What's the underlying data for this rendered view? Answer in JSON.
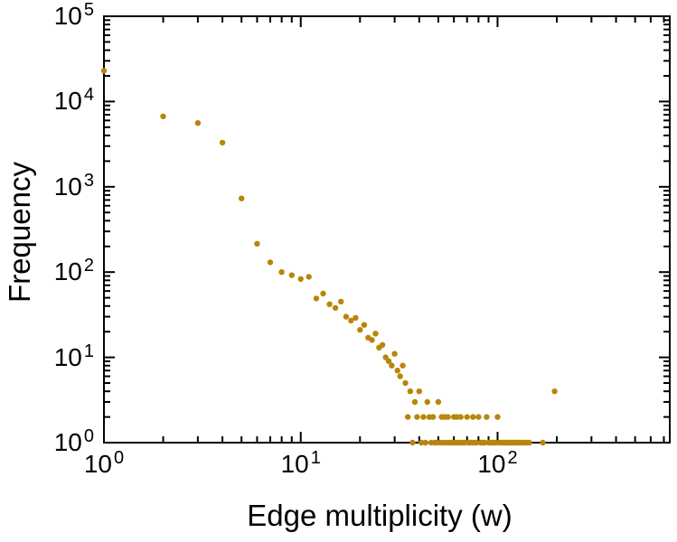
{
  "figure": {
    "background": "#ffffff",
    "frame_color": "#000000",
    "text_color": "#000000"
  },
  "chart_data": {
    "type": "scatter",
    "title": "",
    "xlabel": "Edge multiplicity (w)",
    "ylabel": "Frequency",
    "x_scale": "log",
    "y_scale": "log",
    "x_range": [
      1,
      750
    ],
    "y_range": [
      1,
      100000
    ],
    "x_tick_exponents": [
      0,
      1,
      2
    ],
    "y_tick_exponents": [
      0,
      1,
      2,
      3,
      4,
      5
    ],
    "tick_label_base": "10",
    "minor_ticks": true,
    "legend": "none",
    "grid": false,
    "point_color": "#b8860b",
    "point_radius": 3.2,
    "points": [
      [
        1,
        23000
      ],
      [
        2,
        6700
      ],
      [
        3,
        5600
      ],
      [
        4,
        3300
      ],
      [
        5,
        730
      ],
      [
        6,
        215
      ],
      [
        7,
        130
      ],
      [
        8,
        100
      ],
      [
        9,
        92
      ],
      [
        10,
        83
      ],
      [
        11,
        88
      ],
      [
        12,
        49
      ],
      [
        13,
        56
      ],
      [
        14,
        42
      ],
      [
        15,
        38
      ],
      [
        16,
        45
      ],
      [
        17,
        30
      ],
      [
        18,
        27
      ],
      [
        19,
        29
      ],
      [
        20,
        21
      ],
      [
        21,
        24
      ],
      [
        22,
        17
      ],
      [
        23,
        16
      ],
      [
        24,
        19
      ],
      [
        25,
        13
      ],
      [
        26,
        14
      ],
      [
        27,
        10
      ],
      [
        28,
        9
      ],
      [
        29,
        8
      ],
      [
        30,
        11
      ],
      [
        31,
        7
      ],
      [
        32,
        6
      ],
      [
        33,
        8
      ],
      [
        34,
        5
      ],
      [
        35,
        2
      ],
      [
        36,
        4
      ],
      [
        37,
        1
      ],
      [
        38,
        3
      ],
      [
        39,
        2
      ],
      [
        40,
        4
      ],
      [
        41,
        1
      ],
      [
        42,
        2
      ],
      [
        43,
        1
      ],
      [
        44,
        3
      ],
      [
        45,
        2
      ],
      [
        46,
        1
      ],
      [
        47,
        2
      ],
      [
        48,
        1
      ],
      [
        49,
        1
      ],
      [
        50,
        3
      ],
      [
        51,
        1
      ],
      [
        52,
        2
      ],
      [
        53,
        1
      ],
      [
        54,
        2
      ],
      [
        55,
        1
      ],
      [
        56,
        2
      ],
      [
        57,
        1
      ],
      [
        58,
        1
      ],
      [
        59,
        1
      ],
      [
        60,
        2
      ],
      [
        61,
        1
      ],
      [
        62,
        2
      ],
      [
        63,
        1
      ],
      [
        64,
        1
      ],
      [
        65,
        2
      ],
      [
        66,
        1
      ],
      [
        67,
        1
      ],
      [
        68,
        1
      ],
      [
        70,
        2
      ],
      [
        71,
        1
      ],
      [
        72,
        1
      ],
      [
        74,
        1
      ],
      [
        75,
        2
      ],
      [
        76,
        1
      ],
      [
        78,
        1
      ],
      [
        80,
        2
      ],
      [
        82,
        1
      ],
      [
        84,
        1
      ],
      [
        85,
        1
      ],
      [
        86,
        1
      ],
      [
        88,
        2
      ],
      [
        90,
        1
      ],
      [
        92,
        1
      ],
      [
        94,
        1
      ],
      [
        95,
        1
      ],
      [
        96,
        1
      ],
      [
        98,
        1
      ],
      [
        100,
        2
      ],
      [
        102,
        1
      ],
      [
        104,
        1
      ],
      [
        106,
        1
      ],
      [
        108,
        1
      ],
      [
        110,
        1
      ],
      [
        112,
        1
      ],
      [
        114,
        1
      ],
      [
        116,
        1
      ],
      [
        118,
        1
      ],
      [
        120,
        1
      ],
      [
        122,
        1
      ],
      [
        124,
        1
      ],
      [
        126,
        1
      ],
      [
        128,
        1
      ],
      [
        130,
        1
      ],
      [
        133,
        1
      ],
      [
        136,
        1
      ],
      [
        140,
        1
      ],
      [
        145,
        1
      ],
      [
        170,
        1
      ],
      [
        195,
        4
      ]
    ]
  }
}
